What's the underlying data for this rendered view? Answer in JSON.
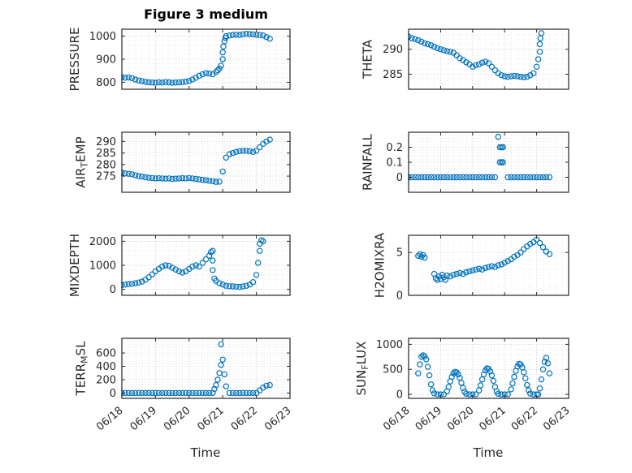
{
  "figure": {
    "title": "Figure 3 medium",
    "marker_color": "#0072BD",
    "axis_color": "#262626",
    "grid_color": "#c0c0c0",
    "minor_grid_color": "#dedede",
    "background": "#ffffff"
  },
  "x_axis": {
    "label": "Time",
    "lim": [
      0,
      5
    ],
    "ticks": [
      0,
      1,
      2,
      3,
      4,
      5
    ],
    "labels": [
      "06/18",
      "06/19",
      "06/20",
      "06/21",
      "06/22",
      "06/23"
    ],
    "x_encoding": "days since 06/18"
  },
  "chart_data": [
    {
      "type": "scatter",
      "name": "pressure",
      "row": 0,
      "col": 0,
      "ylabel": [
        {
          "text": "PRESSURE",
          "sub": false
        }
      ],
      "ylim": [
        770,
        1030
      ],
      "yticks": [
        800,
        900,
        1000
      ],
      "x": [
        0,
        0.1,
        0.2,
        0.3,
        0.4,
        0.5,
        0.6,
        0.7,
        0.8,
        0.9,
        1,
        1.1,
        1.2,
        1.3,
        1.4,
        1.5,
        1.6,
        1.7,
        1.8,
        1.9,
        2,
        2.1,
        2.2,
        2.3,
        2.4,
        2.5,
        2.6,
        2.7,
        2.8,
        2.85,
        2.9,
        2.95,
        3,
        3,
        3.02,
        3.05,
        3.08,
        3.1,
        3.2,
        3.3,
        3.4,
        3.5,
        3.6,
        3.7,
        3.8,
        3.9,
        4,
        4.1,
        4.2,
        4.3,
        4.4
      ],
      "y": [
        822,
        820,
        821,
        818,
        812,
        808,
        805,
        802,
        800,
        799,
        798,
        800,
        799,
        801,
        800,
        798,
        799,
        800,
        801,
        803,
        806,
        812,
        820,
        828,
        835,
        840,
        838,
        835,
        845,
        852,
        860,
        872,
        900,
        930,
        955,
        978,
        992,
        1000,
        1003,
        1005,
        1006,
        1005,
        1008,
        1010,
        1009,
        1008,
        1006,
        1005,
        1003,
        996,
        989
      ]
    },
    {
      "type": "scatter",
      "name": "air-temp",
      "row": 1,
      "col": 0,
      "ylabel": [
        {
          "text": "AIR",
          "sub": false
        },
        {
          "text": "T",
          "sub": true
        },
        {
          "text": "EMP",
          "sub": false
        }
      ],
      "ylim": [
        268,
        294
      ],
      "yticks": [
        275,
        280,
        285,
        290
      ],
      "x": [
        0,
        0.1,
        0.2,
        0.3,
        0.4,
        0.5,
        0.6,
        0.7,
        0.8,
        0.9,
        1,
        1.1,
        1.2,
        1.3,
        1.4,
        1.5,
        1.6,
        1.7,
        1.8,
        1.9,
        2,
        2.1,
        2.2,
        2.3,
        2.4,
        2.5,
        2.6,
        2.7,
        2.8,
        2.9,
        3,
        3.1,
        3.2,
        3.3,
        3.4,
        3.5,
        3.6,
        3.7,
        3.8,
        3.9,
        4,
        4.1,
        4.2,
        4.3,
        4.4
      ],
      "y": [
        276.5,
        276.2,
        276,
        275.8,
        275.4,
        275,
        274.8,
        274.5,
        274.3,
        274.2,
        274,
        274.1,
        274,
        273.9,
        274,
        273.8,
        273.9,
        274,
        274.1,
        274,
        274.2,
        274,
        273.8,
        273.6,
        273.4,
        273.2,
        273,
        272.8,
        272.5,
        272.6,
        277,
        283,
        284.5,
        285,
        285.5,
        285.8,
        286,
        286,
        285.8,
        285.5,
        286,
        287.5,
        289,
        290,
        290.8
      ]
    },
    {
      "type": "scatter",
      "name": "mixdepth",
      "row": 2,
      "col": 0,
      "ylabel": [
        {
          "text": "MIXDEPTH",
          "sub": false
        }
      ],
      "ylim": [
        -250,
        2250
      ],
      "yticks": [
        0,
        1000,
        2000
      ],
      "x": [
        0,
        0.1,
        0.2,
        0.3,
        0.4,
        0.5,
        0.6,
        0.7,
        0.8,
        0.9,
        1,
        1.1,
        1.2,
        1.3,
        1.4,
        1.5,
        1.6,
        1.7,
        1.8,
        1.9,
        2,
        2.1,
        2.2,
        2.3,
        2.4,
        2.5,
        2.6,
        2.65,
        2.7,
        2.7,
        2.7,
        2.75,
        2.8,
        2.9,
        3,
        3.1,
        3.2,
        3.3,
        3.4,
        3.5,
        3.6,
        3.7,
        3.8,
        3.9,
        4,
        4.05,
        4.1,
        4.1,
        4.15,
        4.2
      ],
      "y": [
        180,
        200,
        220,
        230,
        250,
        280,
        320,
        400,
        500,
        620,
        750,
        850,
        950,
        1000,
        980,
        900,
        820,
        750,
        700,
        750,
        850,
        950,
        1000,
        950,
        1100,
        1250,
        1400,
        1550,
        1600,
        1200,
        800,
        450,
        350,
        250,
        200,
        150,
        130,
        120,
        110,
        100,
        120,
        150,
        200,
        300,
        600,
        1100,
        1600,
        1900,
        2050,
        2000
      ]
    },
    {
      "type": "scatter",
      "name": "terr-msl",
      "row": 3,
      "col": 0,
      "ylabel": [
        {
          "text": "TERR",
          "sub": false
        },
        {
          "text": "M",
          "sub": true
        },
        {
          "text": "SL",
          "sub": false
        }
      ],
      "ylim": [
        -80,
        820
      ],
      "yticks": [
        0,
        200,
        400,
        600
      ],
      "x": [
        0,
        0.1,
        0.2,
        0.3,
        0.4,
        0.5,
        0.6,
        0.7,
        0.8,
        0.9,
        1,
        1.1,
        1.2,
        1.3,
        1.4,
        1.5,
        1.6,
        1.7,
        1.8,
        1.9,
        2,
        2.1,
        2.2,
        2.3,
        2.4,
        2.5,
        2.6,
        2.7,
        2.75,
        2.8,
        2.85,
        2.9,
        2.95,
        2.95,
        3,
        3.05,
        3.1,
        3.2,
        3.3,
        3.4,
        3.5,
        3.6,
        3.7,
        3.8,
        3.9,
        4,
        4.1,
        4.2,
        4.3,
        4.4
      ],
      "y": [
        0,
        0,
        0,
        0,
        0,
        0,
        0,
        0,
        0,
        0,
        0,
        0,
        0,
        0,
        0,
        0,
        0,
        0,
        0,
        0,
        0,
        0,
        0,
        0,
        0,
        0,
        0,
        0,
        60,
        120,
        200,
        300,
        420,
        730,
        500,
        280,
        100,
        0,
        0,
        0,
        0,
        0,
        0,
        0,
        0,
        0,
        40,
        80,
        110,
        120
      ]
    },
    {
      "type": "scatter",
      "name": "theta",
      "row": 0,
      "col": 1,
      "ylabel": [
        {
          "text": "THETA",
          "sub": false
        }
      ],
      "ylim": [
        282,
        294
      ],
      "yticks": [
        285,
        290
      ],
      "x": [
        0,
        0.1,
        0.2,
        0.3,
        0.4,
        0.5,
        0.6,
        0.7,
        0.8,
        0.9,
        1,
        1.1,
        1.2,
        1.3,
        1.4,
        1.5,
        1.6,
        1.7,
        1.8,
        1.9,
        2,
        2.1,
        2.2,
        2.3,
        2.4,
        2.5,
        2.6,
        2.7,
        2.8,
        2.9,
        3,
        3.1,
        3.2,
        3.3,
        3.4,
        3.5,
        3.6,
        3.7,
        3.8,
        3.9,
        4,
        4.05,
        4.1,
        4.1,
        4.12,
        4.15
      ],
      "y": [
        292.5,
        292.2,
        292,
        291.8,
        291.5,
        291.2,
        291,
        290.8,
        290.5,
        290.2,
        290,
        289.8,
        289.6,
        289.5,
        289.3,
        288.8,
        288.2,
        287.8,
        287.4,
        287,
        286.5,
        286.8,
        287,
        287.3,
        287.5,
        287.2,
        286.5,
        285.8,
        285.2,
        284.8,
        284.6,
        284.5,
        284.6,
        284.7,
        284.6,
        284.5,
        284.4,
        284.5,
        284.8,
        285.2,
        286.5,
        288,
        289.5,
        291,
        292.2,
        293.2
      ]
    },
    {
      "type": "scatter",
      "name": "rainfall",
      "row": 1,
      "col": 1,
      "ylabel": [
        {
          "text": "RAINFALL",
          "sub": false
        }
      ],
      "ylim": [
        -0.1,
        0.3
      ],
      "yticks": [
        0,
        0.1,
        0.2
      ],
      "x": [
        0,
        0.1,
        0.2,
        0.3,
        0.4,
        0.5,
        0.6,
        0.7,
        0.8,
        0.9,
        1,
        1.1,
        1.2,
        1.3,
        1.4,
        1.5,
        1.6,
        1.7,
        1.8,
        1.9,
        2,
        2.1,
        2.2,
        2.3,
        2.4,
        2.5,
        2.6,
        2.7,
        2.8,
        2.85,
        2.9,
        2.95,
        2.85,
        2.9,
        2.95,
        3.1,
        3.2,
        3.3,
        3.4,
        3.5,
        3.6,
        3.7,
        3.8,
        3.9,
        4,
        4.1,
        4.2,
        4.3,
        4.4
      ],
      "y": [
        0,
        0,
        0,
        0,
        0,
        0,
        0,
        0,
        0,
        0,
        0,
        0,
        0,
        0,
        0,
        0,
        0,
        0,
        0,
        0,
        0,
        0,
        0,
        0,
        0,
        0,
        0,
        0,
        0.27,
        0.2,
        0.2,
        0.2,
        0.1,
        0.1,
        0.1,
        0,
        0,
        0,
        0,
        0,
        0,
        0,
        0,
        0,
        0,
        0,
        0,
        0,
        0
      ]
    },
    {
      "type": "scatter",
      "name": "h2omixra",
      "row": 2,
      "col": 1,
      "ylabel": [
        {
          "text": "H2OMIXRA",
          "sub": false
        }
      ],
      "ylim": [
        0,
        7
      ],
      "yticks": [
        0,
        5
      ],
      "x": [
        0.3,
        0.35,
        0.4,
        0.45,
        0.5,
        0.8,
        0.85,
        0.9,
        0.95,
        1,
        1.05,
        1.1,
        1.15,
        1.2,
        1.3,
        1.4,
        1.5,
        1.6,
        1.7,
        1.8,
        1.9,
        2,
        2.1,
        2.2,
        2.3,
        2.4,
        2.5,
        2.6,
        2.7,
        2.8,
        2.9,
        3,
        3.1,
        3.2,
        3.3,
        3.4,
        3.5,
        3.6,
        3.7,
        3.8,
        3.9,
        4,
        4.1,
        4.2,
        4.3,
        4.4
      ],
      "y": [
        4.6,
        4.8,
        4.5,
        4.7,
        4.4,
        2.5,
        2,
        1.8,
        2.2,
        1.9,
        2.4,
        2.1,
        1.8,
        2.3,
        2.2,
        2.4,
        2.5,
        2.6,
        2.5,
        2.7,
        2.8,
        2.9,
        3,
        3.1,
        3,
        3.2,
        3.3,
        3.4,
        3.3,
        3.5,
        3.6,
        3.8,
        4,
        4.2,
        4.5,
        4.7,
        5,
        5.4,
        5.7,
        6,
        6.2,
        6.5,
        6.1,
        5.6,
        5.1,
        4.8
      ]
    },
    {
      "type": "scatter",
      "name": "sun-flux",
      "row": 3,
      "col": 1,
      "ylabel": [
        {
          "text": "SUN",
          "sub": false
        },
        {
          "text": "F",
          "sub": true
        },
        {
          "text": "LUX",
          "sub": false
        }
      ],
      "ylim": [
        -80,
        1120
      ],
      "yticks": [
        0,
        500,
        1000
      ],
      "x": [
        0.3,
        0.35,
        0.4,
        0.45,
        0.5,
        0.55,
        0.6,
        0.65,
        0.7,
        0.75,
        0.8,
        0.9,
        1,
        1.1,
        1.2,
        1.25,
        1.3,
        1.35,
        1.4,
        1.45,
        1.5,
        1.55,
        1.6,
        1.65,
        1.7,
        1.75,
        1.8,
        1.9,
        2,
        2.1,
        2.2,
        2.25,
        2.3,
        2.35,
        2.4,
        2.45,
        2.5,
        2.55,
        2.6,
        2.65,
        2.7,
        2.75,
        2.8,
        2.9,
        3,
        3.1,
        3.2,
        3.25,
        3.3,
        3.35,
        3.4,
        3.45,
        3.5,
        3.55,
        3.6,
        3.65,
        3.7,
        3.75,
        3.8,
        3.9,
        4,
        4.05,
        4.1,
        4.15,
        4.2,
        4.25,
        4.3,
        4.35,
        4.4
      ],
      "y": [
        420,
        600,
        750,
        780,
        760,
        700,
        550,
        380,
        200,
        80,
        20,
        0,
        0,
        0,
        60,
        150,
        260,
        350,
        420,
        450,
        440,
        400,
        330,
        230,
        130,
        50,
        10,
        0,
        0,
        0,
        80,
        180,
        300,
        400,
        480,
        520,
        510,
        460,
        380,
        270,
        150,
        60,
        10,
        0,
        0,
        0,
        100,
        220,
        350,
        470,
        560,
        610,
        600,
        540,
        440,
        320,
        190,
        80,
        15,
        0,
        0,
        0,
        120,
        300,
        500,
        650,
        730,
        620,
        420
      ]
    }
  ]
}
